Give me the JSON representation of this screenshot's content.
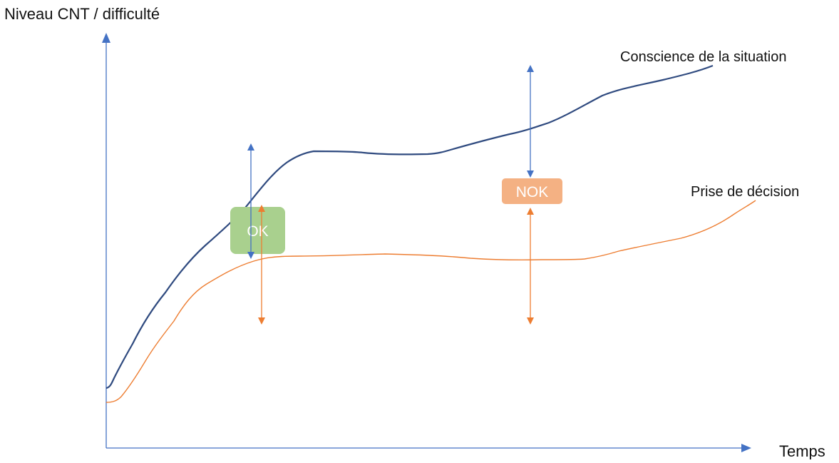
{
  "axes": {
    "y_label": "Niveau CNT / difficulté",
    "x_label": "Temps",
    "axis_color": "#4472C4"
  },
  "series": {
    "situation": {
      "label": "Conscience de la situation",
      "color": "#2F4A7F"
    },
    "decision": {
      "label": "Prise de décision",
      "color": "#ED7D31"
    }
  },
  "badges": {
    "ok": {
      "label": "OK",
      "color": "#A9D08E"
    },
    "nok": {
      "label": "NOK",
      "color": "#F4B183"
    }
  },
  "arrow_colors": {
    "blue": "#4472C4",
    "orange": "#ED7D31"
  }
}
